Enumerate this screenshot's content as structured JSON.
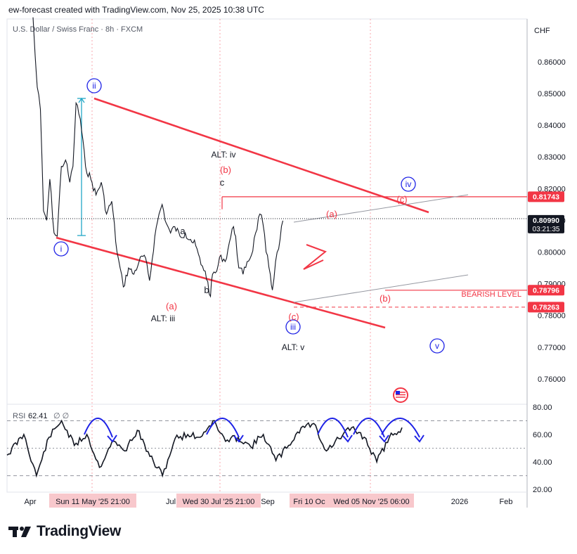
{
  "header": {
    "text": "ew-forecast created with TradingView.com, Nov 25, 2025 10:38 UTC"
  },
  "brand": {
    "name": "TradingView"
  },
  "colors": {
    "red": "#f23645",
    "blue": "#1e22e6",
    "cyan": "#22a7c7",
    "gray": "#9598a1",
    "ink": "#131722"
  },
  "chart_data": [
    {
      "type": "candlestick",
      "title": "U.S. Dollar / Swiss Franc · 8h · FXCM",
      "currency": "CHF",
      "ylim": [
        0.752,
        0.8735
      ],
      "y_ticks": [
        "0.86000",
        "0.85000",
        "0.84000",
        "0.83000",
        "0.82000",
        "0.81000",
        "0.80000",
        "0.79000",
        "0.78000",
        "0.77000",
        "0.76000"
      ],
      "x_ticks": [
        "Apr",
        "Jul",
        "Sep",
        "2026",
        "Feb"
      ],
      "x_highlight_labels": [
        "Sun 11 May '25   21:00",
        "Wed 30 Jul '25   21:00",
        "Fri 10 Oc",
        "Wed 05 Nov '25   06:00"
      ],
      "price_path": [
        [
          "Apr 1",
          0.874
        ],
        [
          "Apr 3",
          0.862
        ],
        [
          "Apr 5",
          0.852
        ],
        [
          "Apr 8",
          0.845
        ],
        [
          "Apr 11",
          0.813
        ],
        [
          "Apr 14",
          0.81
        ],
        [
          "Apr 17",
          0.823
        ],
        [
          "Apr 21",
          0.806
        ],
        [
          "Apr 24",
          0.805
        ],
        [
          "Apr 28",
          0.827
        ],
        [
          "May 2",
          0.829
        ],
        [
          "May 6",
          0.822
        ],
        [
          "May 9",
          0.827
        ],
        [
          "May 12",
          0.847
        ],
        [
          "May 16",
          0.842
        ],
        [
          "May 21",
          0.827
        ],
        [
          "May 26",
          0.823
        ],
        [
          "May 31",
          0.818
        ],
        [
          "Jun 5",
          0.822
        ],
        [
          "Jun 10",
          0.812
        ],
        [
          "Jun 15",
          0.816
        ],
        [
          "Jun 20",
          0.8
        ],
        [
          "Jun 26",
          0.789
        ],
        [
          "Jul 1",
          0.795
        ],
        [
          "Jul 6",
          0.793
        ],
        [
          "Jul 11",
          0.797
        ],
        [
          "Jul 16",
          0.799
        ],
        [
          "Jul 21",
          0.791
        ],
        [
          "Jul 26",
          0.805
        ],
        [
          "Jul 30",
          0.812
        ],
        [
          "Aug 2",
          0.815
        ],
        [
          "Aug 6",
          0.809
        ],
        [
          "Aug 10",
          0.806
        ],
        [
          "Aug 14",
          0.808
        ],
        [
          "Aug 19",
          0.805
        ],
        [
          "Aug 24",
          0.806
        ],
        [
          "Aug 29",
          0.804
        ],
        [
          "Sep 3",
          0.802
        ],
        [
          "Sep 8",
          0.796
        ],
        [
          "Sep 12",
          0.794
        ],
        [
          "Sep 17",
          0.786
        ],
        [
          "Sep 19",
          0.793
        ],
        [
          "Sep 23",
          0.794
        ],
        [
          "Sep 27",
          0.799
        ],
        [
          "Oct 1",
          0.797
        ],
        [
          "Oct 5",
          0.803
        ],
        [
          "Oct 9",
          0.808
        ],
        [
          "Oct 11",
          0.805
        ],
        [
          "Oct 14",
          0.795
        ],
        [
          "Oct 18",
          0.793
        ],
        [
          "Oct 22",
          0.797
        ],
        [
          "Oct 26",
          0.799
        ],
        [
          "Oct 30",
          0.806
        ],
        [
          "Nov 3",
          0.812
        ],
        [
          "Nov 6",
          0.809
        ],
        [
          "Nov 9",
          0.8
        ],
        [
          "Nov 13",
          0.793
        ],
        [
          "Nov 15",
          0.788
        ],
        [
          "Nov 18",
          0.797
        ],
        [
          "Nov 21",
          0.801
        ],
        [
          "Nov 25",
          0.8099
        ]
      ],
      "price_labels": [
        {
          "text": "0.81743",
          "value": 0.81743,
          "style": "red"
        },
        {
          "text": "0.80990",
          "sub": "03:21:35",
          "value": 0.8099,
          "style": "black"
        },
        {
          "text": "0.78796",
          "value": 0.78796,
          "style": "red"
        },
        {
          "text": "0.78263",
          "value": 0.78263,
          "style": "red"
        }
      ],
      "levels": [
        {
          "label": "BEARISH LEVEL",
          "value": 0.78796
        },
        {
          "label": "",
          "value": 0.78263
        }
      ],
      "annotations": {
        "circled": [
          "i",
          "ii",
          "iii",
          "iv",
          "v"
        ],
        "red": [
          "(a)",
          "(b)",
          "(c)",
          "(a)",
          "(c)",
          "(b)"
        ],
        "black": [
          "ALT: iv",
          "c",
          "a",
          "b",
          "ALT: iii",
          "ALT: v"
        ]
      }
    },
    {
      "type": "line",
      "title": "RSI",
      "value": "62.41",
      "extra": "∅  ∅",
      "ylim": [
        18,
        82
      ],
      "y_ticks": [
        "80.00",
        "60.00",
        "40.00",
        "20.00"
      ],
      "levels": [
        70,
        50,
        30
      ],
      "values": [
        [
          0,
          45
        ],
        [
          8,
          60
        ],
        [
          14,
          30
        ],
        [
          20,
          58
        ],
        [
          26,
          70
        ],
        [
          32,
          52
        ],
        [
          38,
          60
        ],
        [
          44,
          36
        ],
        [
          50,
          55
        ],
        [
          56,
          48
        ],
        [
          62,
          63
        ],
        [
          68,
          44
        ],
        [
          74,
          30
        ],
        [
          80,
          57
        ],
        [
          86,
          60
        ],
        [
          92,
          58
        ],
        [
          98,
          70
        ],
        [
          104,
          55
        ],
        [
          110,
          58
        ],
        [
          116,
          51
        ],
        [
          122,
          60
        ],
        [
          128,
          41
        ],
        [
          134,
          52
        ],
        [
          140,
          65
        ],
        [
          146,
          68
        ],
        [
          152,
          48
        ],
        [
          158,
          57
        ],
        [
          164,
          65
        ],
        [
          170,
          58
        ],
        [
          176,
          40
        ],
        [
          182,
          58
        ],
        [
          188,
          65
        ]
      ]
    }
  ]
}
